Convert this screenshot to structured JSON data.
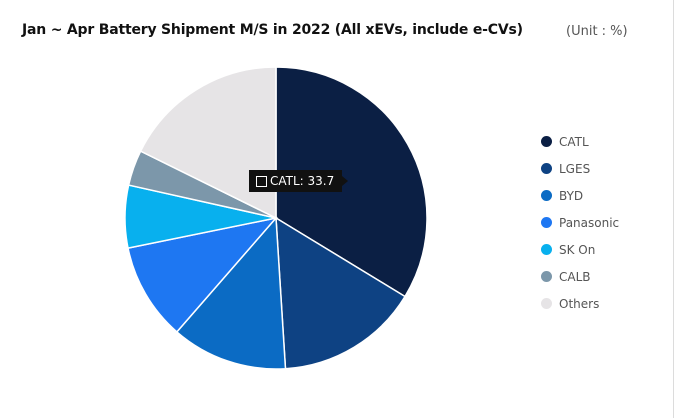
{
  "header": {
    "title": "Jan ~ Apr Battery Shipment M/S in 2022 (All xEVs, include e-CVs)",
    "unit": "(Unit : %)"
  },
  "tooltip": {
    "text": "CATL: 33.7"
  },
  "chart_data": {
    "type": "pie",
    "title": "Jan ~ Apr Battery Shipment M/S in 2022 (All xEVs, include e-CVs)",
    "unit": "%",
    "legend_position": "right",
    "categories": [
      "CATL",
      "LGES",
      "BYD",
      "Panasonic",
      "SK On",
      "CALB",
      "Others"
    ],
    "values": [
      33.7,
      15.3,
      12.4,
      10.4,
      6.7,
      3.8,
      17.7
    ],
    "colors": [
      "#0b1f44",
      "#0e4283",
      "#0b6bc4",
      "#1e77f2",
      "#08b0ee",
      "#7c97aa",
      "#e6e4e6"
    ],
    "start_angle_deg": 0,
    "direction": "clockwise",
    "highlighted": "CATL"
  }
}
